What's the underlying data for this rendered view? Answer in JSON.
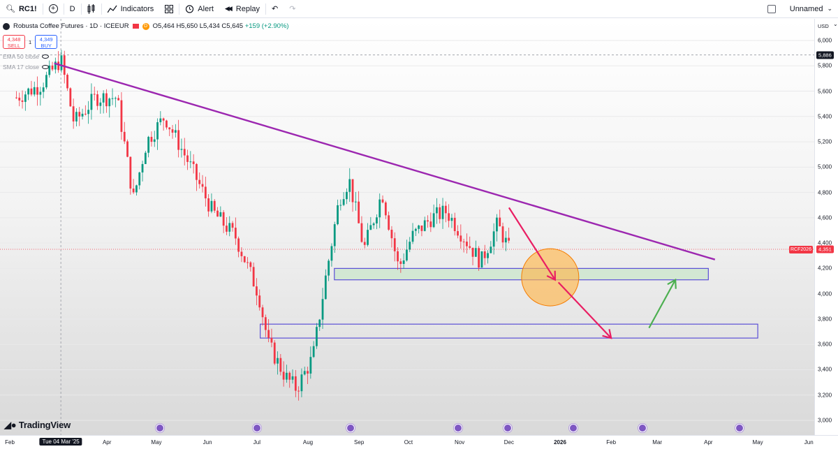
{
  "toolbar": {
    "symbol": "RC1!",
    "interval": "D",
    "indicators_label": "Indicators",
    "alert_label": "Alert",
    "replay_label": "Replay",
    "layout_name": "Unnamed"
  },
  "legend": {
    "title": "Robusta Coffee Futures · 1D · ICEEUR",
    "badge": "D",
    "open": "O5,464",
    "high": "H5,650",
    "low": "L5,434",
    "close": "C5,645",
    "change": "+159 (+2.90%)"
  },
  "trade": {
    "sell_price": "4,348",
    "sell_label": "SELL",
    "spread": "1",
    "buy_price": "4,349",
    "buy_label": "BUY"
  },
  "indicators": [
    {
      "label": "EMA 50 close"
    },
    {
      "label": "SMA 17 close"
    }
  ],
  "price_axis": {
    "currency": "USD",
    "ticks": [
      "6,000",
      "5,800",
      "5,600",
      "5,400",
      "5,200",
      "5,000",
      "4,800",
      "4,600",
      "4,400",
      "4,200",
      "4,000",
      "3,800",
      "3,600",
      "3,400",
      "3,200",
      "3,000"
    ],
    "crosshair_price": "5,886",
    "symbol_tag": "RCF2026",
    "last_price": "4,351"
  },
  "time_axis": {
    "labels": [
      "Feb",
      "Apr",
      "May",
      "Jun",
      "Jul",
      "Aug",
      "Sep",
      "Oct",
      "Nov",
      "Dec",
      "2026",
      "Feb",
      "Mar",
      "Apr",
      "May",
      "Jun"
    ],
    "crosshair_date": "Tue 04 Mar '25"
  },
  "brand": "TradingView",
  "colors": {
    "up": "#089981",
    "down": "#f23645",
    "trendline": "#9c27b0",
    "zone_border": "#5b4fd6",
    "zone_fill": "#c8e6c9",
    "arrow_down": "#e91e63",
    "arrow_up": "#4caf50",
    "circle": "#ffb74d",
    "last_price": "#f23645"
  },
  "chart_data": {
    "type": "candlestick",
    "instrument": "Robusta Coffee Futures",
    "timeframe": "1D",
    "ylim": [
      3000,
      6000
    ],
    "price_series": [
      {
        "date": "2025-02-05",
        "value": 5550
      },
      {
        "date": "2025-02-20",
        "value": 5650
      },
      {
        "date": "2025-03-04",
        "value": 5850
      },
      {
        "date": "2025-03-12",
        "value": 5350
      },
      {
        "date": "2025-03-25",
        "value": 5550
      },
      {
        "date": "2025-04-07",
        "value": 5550
      },
      {
        "date": "2025-04-17",
        "value": 4750
      },
      {
        "date": "2025-04-25",
        "value": 5200
      },
      {
        "date": "2025-05-06",
        "value": 5400
      },
      {
        "date": "2025-05-20",
        "value": 5050
      },
      {
        "date": "2025-06-04",
        "value": 4650
      },
      {
        "date": "2025-06-18",
        "value": 4450
      },
      {
        "date": "2025-07-02",
        "value": 4000
      },
      {
        "date": "2025-07-08",
        "value": 3600
      },
      {
        "date": "2025-07-18",
        "value": 3350
      },
      {
        "date": "2025-07-25",
        "value": 3250
      },
      {
        "date": "2025-08-04",
        "value": 3500
      },
      {
        "date": "2025-08-12",
        "value": 4150
      },
      {
        "date": "2025-08-20",
        "value": 4750
      },
      {
        "date": "2025-08-26",
        "value": 4900
      },
      {
        "date": "2025-09-04",
        "value": 4350
      },
      {
        "date": "2025-09-15",
        "value": 4800
      },
      {
        "date": "2025-09-25",
        "value": 4200
      },
      {
        "date": "2025-10-03",
        "value": 4450
      },
      {
        "date": "2025-10-15",
        "value": 4600
      },
      {
        "date": "2025-10-24",
        "value": 4650
      },
      {
        "date": "2025-11-06",
        "value": 4400
      },
      {
        "date": "2025-11-14",
        "value": 4250
      },
      {
        "date": "2025-11-24",
        "value": 4550
      },
      {
        "date": "2025-12-01",
        "value": 4351
      }
    ],
    "trendline": {
      "start": {
        "date": "2025-02-28",
        "value": 5820
      },
      "end": {
        "date": "2026-04-05",
        "value": 4270
      }
    },
    "zones": [
      {
        "from": "2025-08-17",
        "to": "2026-04-01",
        "low": 4110,
        "high": 4200
      },
      {
        "from": "2025-07-03",
        "to": "2026-05-01",
        "low": 3650,
        "high": 3760
      }
    ],
    "projection_arrows": [
      {
        "color": "down",
        "from": {
          "date": "2025-12-01",
          "value": 4680
        },
        "to": {
          "date": "2025-12-29",
          "value": 4110
        }
      },
      {
        "color": "down",
        "from": {
          "date": "2025-12-31",
          "value": 4090
        },
        "to": {
          "date": "2026-02-01",
          "value": 3650
        }
      },
      {
        "color": "up",
        "from": {
          "date": "2026-02-24",
          "value": 3730
        },
        "to": {
          "date": "2026-03-12",
          "value": 4110
        }
      }
    ],
    "circle": {
      "date": "2025-12-26",
      "value": 4130
    },
    "last_price": 4351,
    "crosshair_price": 5886
  }
}
